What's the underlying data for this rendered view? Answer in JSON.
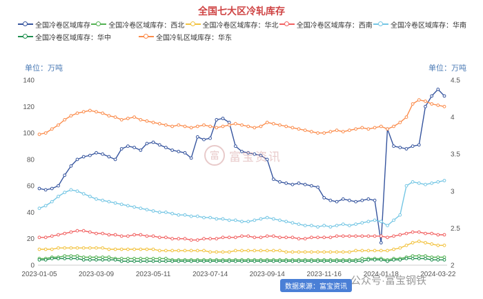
{
  "header": {
    "title": "全国七大区冷轧库存"
  },
  "watermark": {
    "logo_char": "富",
    "text": "富宝资讯"
  },
  "footer": {
    "source_badge": "数据来源：富宝资讯",
    "wechat": "公众号·富宝钢铁"
  },
  "chart_data": {
    "type": "line",
    "title": "全国七大区冷轧库存",
    "grid": false,
    "legend_position": "top",
    "x_count": 65,
    "x_tick_indices": [
      0,
      9,
      18,
      27,
      36,
      45,
      54,
      63
    ],
    "x_tick_labels": [
      "2023-01-05",
      "2023-03-09",
      "2023-05-11",
      "2023-07-14",
      "2023-09-14",
      "2023-11-16",
      "2024-01-18",
      "2024-03-22"
    ],
    "left_axis": {
      "label": "单位：万吨",
      "min": 0,
      "max": 140,
      "ticks": [
        0,
        20,
        40,
        60,
        80,
        100,
        120,
        140
      ]
    },
    "right_axis": {
      "label": "单位：万吨",
      "min": 2,
      "max": 4.5,
      "ticks": [
        2,
        2.5,
        3,
        3.5,
        4,
        4.5
      ]
    },
    "series": [
      {
        "name": "全国冷卷区域库存",
        "key": "national",
        "color": "#35549e",
        "axis": "left",
        "values": [
          58,
          57,
          58,
          60,
          68,
          75,
          80,
          82,
          83,
          85,
          84,
          82,
          80,
          88,
          90,
          89,
          87,
          92,
          93,
          91,
          89,
          87,
          86,
          85,
          81,
          97,
          95,
          96,
          110,
          111,
          108,
          90,
          86,
          85,
          84,
          83,
          80,
          65,
          63,
          62,
          61,
          62,
          61,
          60,
          59,
          51,
          49,
          48,
          50,
          49,
          48,
          49,
          50,
          49,
          17,
          103,
          90,
          89,
          88,
          90,
          91,
          120,
          128,
          133,
          128
        ]
      },
      {
        "name": "全国冷卷区域库存：西北",
        "key": "xibei",
        "color": "#52b152",
        "axis": "left",
        "values": [
          5,
          5,
          6,
          6,
          7,
          7,
          7,
          6,
          6,
          6,
          6,
          6,
          5,
          5,
          5,
          5,
          5,
          5,
          5,
          5,
          5,
          4,
          4,
          4,
          4,
          4,
          4,
          4,
          4,
          4,
          4,
          4,
          4,
          4,
          4,
          4,
          4,
          4,
          4,
          4,
          4,
          4,
          4,
          4,
          4,
          4,
          4,
          4,
          4,
          4,
          4,
          5,
          5,
          5,
          5,
          4,
          5,
          5,
          6,
          7,
          7,
          7,
          6,
          6,
          6
        ]
      },
      {
        "name": "全国冷卷区域库存：华北",
        "key": "huabei",
        "color": "#f2c23e",
        "axis": "left",
        "values": [
          12,
          12,
          12,
          13,
          13,
          13,
          13,
          13,
          13,
          13,
          13,
          12,
          12,
          12,
          12,
          12,
          12,
          12,
          12,
          11,
          11,
          11,
          11,
          11,
          11,
          11,
          11,
          10,
          10,
          10,
          10,
          11,
          11,
          11,
          11,
          11,
          11,
          11,
          11,
          10,
          10,
          10,
          10,
          10,
          10,
          10,
          10,
          10,
          10,
          10,
          11,
          11,
          11,
          11,
          11,
          11,
          12,
          13,
          15,
          17,
          18,
          17,
          16,
          15,
          15
        ]
      },
      {
        "name": "全国冷卷区域库存：西南",
        "key": "xinan",
        "color": "#f15f5f",
        "axis": "left",
        "values": [
          21,
          21,
          22,
          23,
          24,
          25,
          26,
          26,
          25,
          24,
          24,
          23,
          23,
          22,
          22,
          23,
          23,
          22,
          22,
          21,
          21,
          20,
          20,
          20,
          19,
          19,
          20,
          20,
          20,
          21,
          21,
          21,
          22,
          22,
          21,
          21,
          22,
          22,
          21,
          21,
          21,
          20,
          20,
          21,
          21,
          21,
          21,
          22,
          22,
          22,
          22,
          22,
          22,
          22,
          22,
          21,
          22,
          23,
          24,
          25,
          25,
          24,
          24,
          23,
          23
        ]
      },
      {
        "name": "全国冷卷区域库存：华南",
        "key": "huanan",
        "color": "#74c6e4",
        "axis": "left",
        "values": [
          43,
          45,
          48,
          52,
          55,
          57,
          56,
          54,
          52,
          50,
          49,
          48,
          47,
          46,
          45,
          44,
          43,
          42,
          41,
          40,
          40,
          39,
          38,
          38,
          37,
          37,
          36,
          36,
          35,
          35,
          34,
          34,
          33,
          33,
          34,
          35,
          36,
          35,
          34,
          33,
          32,
          31,
          30,
          30,
          29,
          30,
          29,
          30,
          31,
          30,
          31,
          32,
          33,
          34,
          33,
          30,
          34,
          38,
          60,
          63,
          62,
          61,
          62,
          63,
          64
        ]
      },
      {
        "name": "全国冷卷区域库存：华中",
        "key": "huazhong",
        "color": "#1e8e4e",
        "axis": "left",
        "values": [
          4,
          4,
          5,
          5,
          5,
          5,
          5,
          4,
          4,
          4,
          4,
          4,
          4,
          3,
          3,
          3,
          3,
          3,
          3,
          3,
          3,
          3,
          3,
          3,
          3,
          3,
          3,
          3,
          3,
          3,
          3,
          3,
          3,
          3,
          3,
          3,
          3,
          3,
          3,
          3,
          3,
          3,
          3,
          3,
          3,
          3,
          3,
          3,
          3,
          3,
          3,
          3,
          4,
          4,
          4,
          3,
          4,
          4,
          5,
          5,
          5,
          5,
          4,
          4,
          4
        ]
      },
      {
        "name": "全国冷轧区域库存：华东",
        "key": "huadong",
        "color": "#fb8b4a",
        "axis": "left",
        "values": [
          99,
          100,
          103,
          106,
          110,
          113,
          115,
          116,
          117,
          116,
          115,
          113,
          112,
          110,
          111,
          112,
          110,
          109,
          108,
          107,
          106,
          105,
          106,
          105,
          104,
          105,
          106,
          105,
          104,
          105,
          106,
          107,
          106,
          105,
          104,
          105,
          108,
          107,
          106,
          105,
          104,
          103,
          102,
          101,
          100,
          100,
          101,
          102,
          101,
          102,
          103,
          104,
          103,
          104,
          105,
          103,
          105,
          108,
          112,
          122,
          125,
          124,
          122,
          121,
          120
        ]
      }
    ]
  }
}
